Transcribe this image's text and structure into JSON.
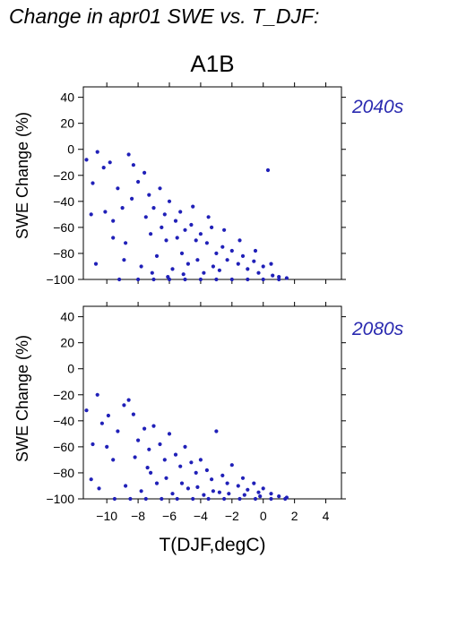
{
  "figure": {
    "title": "Change in apr01 SWE vs. T_DJF:",
    "scenario": "A1B",
    "xlabel": "T(DJF,degC)"
  },
  "colors": {
    "points": "#2020b8",
    "period_label": "#2a2ab0",
    "axis": "#000000"
  },
  "chart_data": [
    {
      "type": "scatter",
      "period": "2040s",
      "ylabel": "SWE Change (%)",
      "xlim": [
        -11.5,
        5
      ],
      "ylim": [
        -100,
        48
      ],
      "x_ticks": [
        -10,
        -8,
        -6,
        -4,
        -2,
        0,
        2,
        4
      ],
      "y_ticks": [
        -100,
        -80,
        -60,
        -40,
        -20,
        0,
        20,
        40
      ],
      "y_tick_labels": [
        "−100",
        "−80",
        "−60",
        "−40",
        "−20",
        "0",
        "20",
        "40"
      ],
      "grid": false,
      "points": [
        [
          -11.3,
          -8
        ],
        [
          -10.6,
          -2
        ],
        [
          -10.2,
          -14
        ],
        [
          -9.8,
          -10
        ],
        [
          -10.9,
          -26
        ],
        [
          -11.0,
          -50
        ],
        [
          -10.7,
          -88
        ],
        [
          -10.1,
          -48
        ],
        [
          -9.6,
          -55
        ],
        [
          -9.3,
          -30
        ],
        [
          -9.0,
          -45
        ],
        [
          -8.6,
          -4
        ],
        [
          -8.3,
          -12
        ],
        [
          -8.0,
          -25
        ],
        [
          -7.6,
          -18
        ],
        [
          -7.3,
          -35
        ],
        [
          -7.0,
          -45
        ],
        [
          -6.6,
          -30
        ],
        [
          -6.3,
          -50
        ],
        [
          -6.0,
          -40
        ],
        [
          -5.6,
          -55
        ],
        [
          -5.3,
          -48
        ],
        [
          -5.0,
          -62
        ],
        [
          -4.6,
          -58
        ],
        [
          -4.3,
          -70
        ],
        [
          -4.0,
          -65
        ],
        [
          -3.6,
          -72
        ],
        [
          -3.3,
          -60
        ],
        [
          -3.0,
          -80
        ],
        [
          -2.6,
          -75
        ],
        [
          -2.3,
          -85
        ],
        [
          -2.0,
          -78
        ],
        [
          -1.6,
          -88
        ],
        [
          -1.3,
          -82
        ],
        [
          -1.0,
          -92
        ],
        [
          -0.6,
          -86
        ],
        [
          -0.3,
          -95
        ],
        [
          0.0,
          -90
        ],
        [
          0.3,
          -16
        ],
        [
          0.6,
          -97
        ],
        [
          1.0,
          -98
        ],
        [
          1.5,
          -99
        ],
        [
          -9.2,
          -100
        ],
        [
          -8.0,
          -100
        ],
        [
          -7.0,
          -100
        ],
        [
          -6.0,
          -100
        ],
        [
          -5.0,
          -100
        ],
        [
          -4.0,
          -100
        ],
        [
          -3.0,
          -100
        ],
        [
          -2.0,
          -100
        ],
        [
          -1.0,
          -100
        ],
        [
          0.0,
          -100
        ],
        [
          1.0,
          -100
        ],
        [
          -8.8,
          -72
        ],
        [
          -7.8,
          -90
        ],
        [
          -6.8,
          -82
        ],
        [
          -5.8,
          -92
        ],
        [
          -4.8,
          -88
        ],
        [
          -3.8,
          -95
        ],
        [
          -2.8,
          -93
        ],
        [
          -7.2,
          -65
        ],
        [
          -6.2,
          -70
        ],
        [
          -5.2,
          -80
        ],
        [
          -4.2,
          -85
        ],
        [
          -3.2,
          -90
        ],
        [
          -8.4,
          -38
        ],
        [
          -7.5,
          -52
        ],
        [
          -6.5,
          -60
        ],
        [
          -5.5,
          -68
        ],
        [
          -4.5,
          -44
        ],
        [
          -3.5,
          -52
        ],
        [
          -2.5,
          -62
        ],
        [
          -1.5,
          -70
        ],
        [
          -0.5,
          -78
        ],
        [
          0.5,
          -88
        ],
        [
          -9.6,
          -68
        ],
        [
          -8.9,
          -85
        ],
        [
          -7.1,
          -95
        ],
        [
          -6.1,
          -98
        ],
        [
          -5.1,
          -96
        ]
      ]
    },
    {
      "type": "scatter",
      "period": "2080s",
      "ylabel": "SWE Change (%)",
      "xlim": [
        -11.5,
        5
      ],
      "ylim": [
        -100,
        48
      ],
      "x_ticks": [
        -10,
        -8,
        -6,
        -4,
        -2,
        0,
        2,
        4
      ],
      "x_tick_labels": [
        "−10",
        "−8",
        "−6",
        "−4",
        "−2",
        "0",
        "2",
        "4"
      ],
      "y_ticks": [
        -100,
        -80,
        -60,
        -40,
        -20,
        0,
        20,
        40
      ],
      "y_tick_labels": [
        "−100",
        "−80",
        "−60",
        "−40",
        "−20",
        "0",
        "20",
        "40"
      ],
      "grid": false,
      "points": [
        [
          -11.3,
          -32
        ],
        [
          -10.6,
          -20
        ],
        [
          -10.3,
          -42
        ],
        [
          -9.9,
          -36
        ],
        [
          -10.9,
          -58
        ],
        [
          -11.0,
          -85
        ],
        [
          -10.5,
          -92
        ],
        [
          -10.0,
          -60
        ],
        [
          -9.6,
          -70
        ],
        [
          -9.3,
          -48
        ],
        [
          -8.9,
          -28
        ],
        [
          -8.6,
          -24
        ],
        [
          -8.3,
          -35
        ],
        [
          -8.0,
          -55
        ],
        [
          -7.6,
          -46
        ],
        [
          -7.3,
          -62
        ],
        [
          -7.0,
          -44
        ],
        [
          -6.6,
          -58
        ],
        [
          -6.3,
          -70
        ],
        [
          -6.0,
          -50
        ],
        [
          -5.6,
          -66
        ],
        [
          -5.3,
          -75
        ],
        [
          -5.0,
          -60
        ],
        [
          -4.6,
          -72
        ],
        [
          -4.3,
          -80
        ],
        [
          -4.0,
          -70
        ],
        [
          -3.6,
          -78
        ],
        [
          -3.3,
          -85
        ],
        [
          -3.0,
          -48
        ],
        [
          -2.6,
          -82
        ],
        [
          -2.3,
          -88
        ],
        [
          -2.0,
          -74
        ],
        [
          -1.6,
          -90
        ],
        [
          -1.3,
          -84
        ],
        [
          -1.0,
          -93
        ],
        [
          -0.6,
          -88
        ],
        [
          -0.3,
          -95
        ],
        [
          0.0,
          -92
        ],
        [
          0.5,
          -96
        ],
        [
          1.0,
          -98
        ],
        [
          1.5,
          -99
        ],
        [
          -9.5,
          -100
        ],
        [
          -8.5,
          -100
        ],
        [
          -7.5,
          -100
        ],
        [
          -6.5,
          -100
        ],
        [
          -5.5,
          -100
        ],
        [
          -4.5,
          -100
        ],
        [
          -3.5,
          -100
        ],
        [
          -2.5,
          -100
        ],
        [
          -1.5,
          -100
        ],
        [
          -0.5,
          -100
        ],
        [
          0.5,
          -100
        ],
        [
          1.4,
          -100
        ],
        [
          -8.8,
          -90
        ],
        [
          -7.8,
          -94
        ],
        [
          -6.8,
          -88
        ],
        [
          -5.8,
          -96
        ],
        [
          -4.8,
          -92
        ],
        [
          -3.8,
          -97
        ],
        [
          -2.8,
          -95
        ],
        [
          -7.2,
          -80
        ],
        [
          -6.2,
          -84
        ],
        [
          -5.2,
          -88
        ],
        [
          -4.2,
          -91
        ],
        [
          -3.2,
          -94
        ],
        [
          -2.2,
          -96
        ],
        [
          -1.2,
          -97
        ],
        [
          -0.2,
          -98
        ],
        [
          -8.2,
          -68
        ],
        [
          -7.4,
          -76
        ]
      ]
    }
  ]
}
